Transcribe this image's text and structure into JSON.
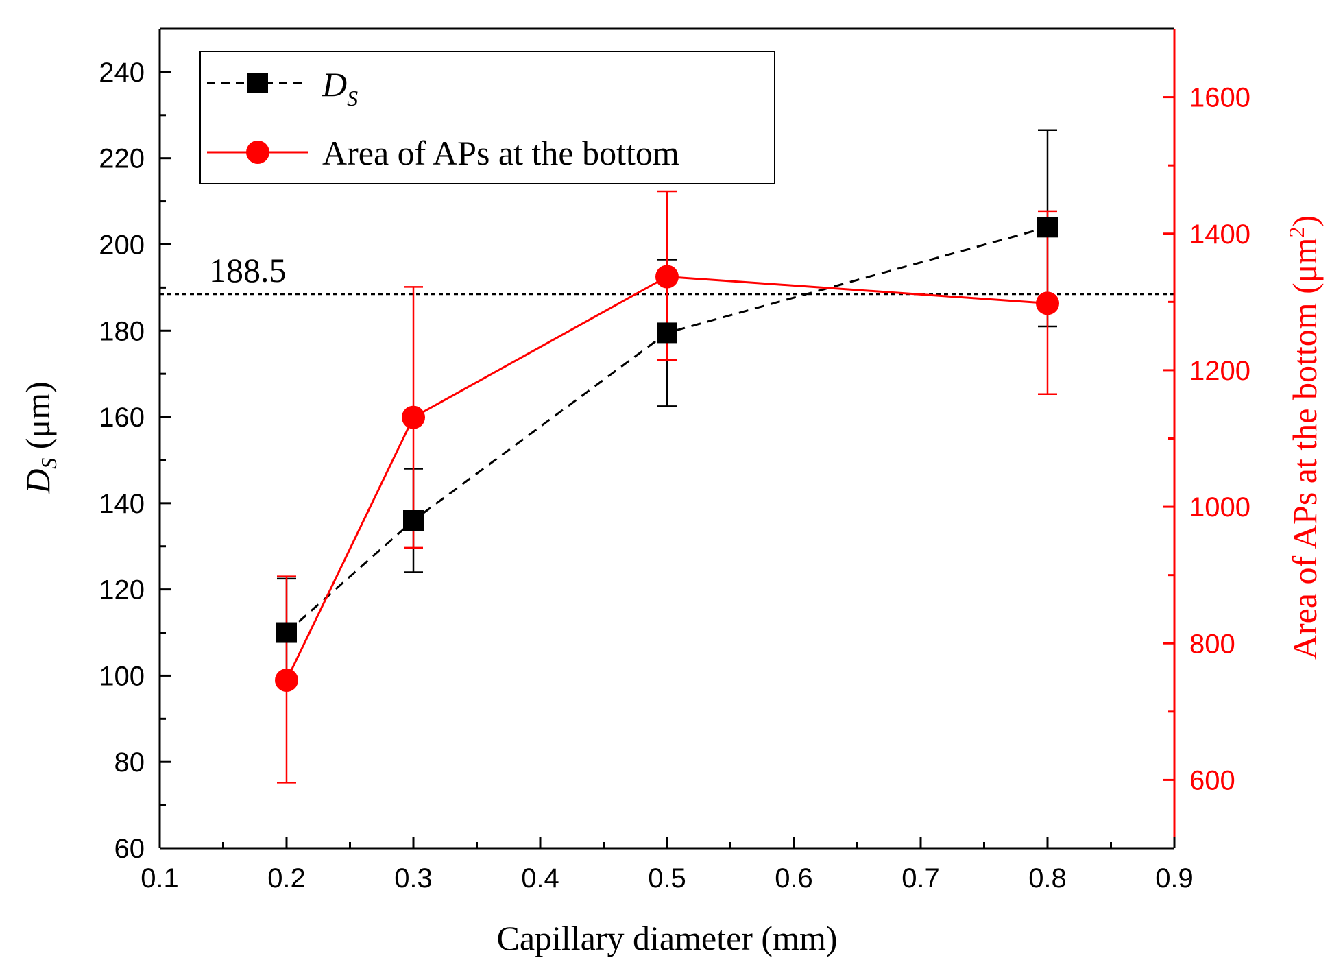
{
  "chart_data": {
    "type": "line",
    "x_axis": {
      "label": "Capillary diameter (mm)",
      "range": [
        0.1,
        0.9
      ],
      "ticks": [
        "0.1",
        "0.2",
        "0.3",
        "0.4",
        "0.5",
        "0.6",
        "0.7",
        "0.8",
        "0.9"
      ]
    },
    "y_axis_left": {
      "label_main": "D",
      "label_sub": "S",
      "label_unit": " (μm)",
      "range": [
        60,
        250
      ],
      "ticks": [
        "60",
        "80",
        "100",
        "120",
        "140",
        "160",
        "180",
        "200",
        "220",
        "240"
      ]
    },
    "y_axis_right": {
      "label_text": "Area of APs at the bottom (μm",
      "label_sup": "2",
      "label_close": ")",
      "range": [
        500,
        1700
      ],
      "ticks": [
        "600",
        "800",
        "1000",
        "1200",
        "1400",
        "1600"
      ],
      "color": "#ff0000"
    },
    "reference_line": {
      "value": 188.5,
      "label": "188.5",
      "axis": "left",
      "style": "dotted"
    },
    "series": [
      {
        "name": "D",
        "name_sub": "S",
        "axis": "left",
        "color": "#000000",
        "line": "dashed",
        "marker": "square",
        "x": [
          0.2,
          0.3,
          0.5,
          0.8
        ],
        "y": [
          110,
          136,
          179.5,
          204
        ],
        "err_low": [
          98,
          124,
          162.5,
          181
        ],
        "err_high": [
          122.5,
          148,
          196.5,
          226.5
        ]
      },
      {
        "name": "Area of APs at the bottom",
        "axis": "right",
        "color": "#ff0000",
        "line": "solid",
        "marker": "circle",
        "x": [
          0.2,
          0.3,
          0.5,
          0.8
        ],
        "y": [
          746,
          1131,
          1337,
          1298
        ],
        "err_low": [
          596,
          940,
          1215,
          1165
        ],
        "err_high": [
          898,
          1322,
          1462,
          1433
        ]
      }
    ],
    "legend_position": "top-left"
  }
}
